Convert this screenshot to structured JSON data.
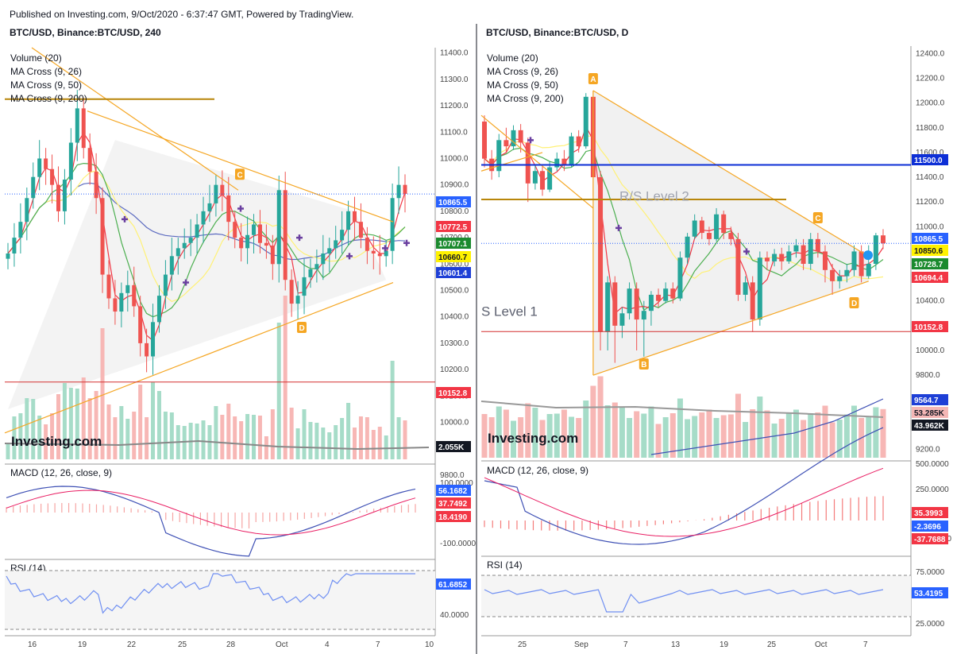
{
  "header": {
    "published": "Published on Investing.com, 9/Oct/2020 - 6:37:47 GMT, Powered by TradingView."
  },
  "colors": {
    "up": "#26a69a",
    "down": "#ef5350",
    "trend": "#f5a623",
    "ma9": "#f23645",
    "ma26": "#4caf50",
    "ma50": "#fff176",
    "ma200": "#5c6bc0",
    "macd": "#3f51b5",
    "signal": "#e91e63",
    "support": "#d32f2f",
    "resistance": "#0d2fd6",
    "rs2": "#b8860b"
  },
  "chart_data": [
    {
      "type": "candlestick",
      "title": "BTC/USD, Binance:BTC/USD, 240",
      "indicators": [
        "Volume (20)",
        "MA Cross (9, 26)",
        "MA Cross (9, 50)",
        "MA Cross (9, 200)"
      ],
      "y_ticks": [
        11400,
        11300,
        11200,
        11100,
        11000,
        10900,
        10800,
        10700,
        10600,
        10500,
        10400,
        10300,
        10200,
        10100,
        10000,
        9900,
        9800
      ],
      "y_tick_labels": [
        "11400.0",
        "11300.0",
        "11200.0",
        "11100.0",
        "11000.0",
        "10900.0",
        "10800.0",
        "10700.0",
        "10600.0",
        "10500.0",
        "10400.0",
        "10300.0",
        "10200.0",
        "10100.0",
        "10000.0",
        "9900.0",
        "9800.0"
      ],
      "ylim": [
        9860,
        11420
      ],
      "x_tick_labels": [
        "16",
        "19",
        "22",
        "25",
        "28",
        "Oct",
        "4",
        "7",
        "10"
      ],
      "close_path": [
        10640,
        10700,
        10760,
        10850,
        10930,
        11000,
        10960,
        10900,
        10800,
        10920,
        11060,
        11190,
        11040,
        10950,
        10850,
        10560,
        10470,
        10420,
        10490,
        10520,
        10440,
        10300,
        10250,
        10380,
        10480,
        10560,
        10630,
        10660,
        10680,
        10700,
        10750,
        10800,
        10830,
        10900,
        10860,
        10760,
        10700,
        10660,
        10710,
        10750,
        10680,
        10670,
        10600,
        10880,
        10540,
        10450,
        10480,
        10550,
        10580,
        10600,
        10640,
        10660,
        10690,
        10730,
        10800,
        10760,
        10700,
        10650,
        10640,
        10630,
        10650,
        10850,
        10900,
        10866
      ],
      "price_labels": [
        {
          "label": "10865.5",
          "value": 10865.5,
          "color": "#2962ff"
        },
        {
          "label": "10772.5",
          "value": 10772.5,
          "color": "#f23645"
        },
        {
          "label": "10707.1",
          "value": 10707.1,
          "color": "#1b8a2e"
        },
        {
          "label": "10660.7",
          "value": 10660.7,
          "color": "#fff200"
        },
        {
          "label": "10601.4",
          "value": 10601.4,
          "color": "#1e3fd6"
        },
        {
          "label": "10152.8",
          "value": 10152.8,
          "color": "#f23645"
        },
        {
          "label": "2.055K",
          "value": 9850,
          "color": "#131722"
        }
      ],
      "horizontal_levels": [
        {
          "name": "support",
          "value": 10152.8
        }
      ],
      "pattern_points": [
        {
          "label": "C",
          "value": 10880
        },
        {
          "label": "D",
          "value": 10420
        }
      ],
      "macd": {
        "label": "MACD (12, 26, close, 9)",
        "y_tick_labels": [
          "100.0000",
          "-100.0000"
        ],
        "value_labels": [
          {
            "label": "56.1682",
            "color": "#2962ff"
          },
          {
            "label": "37.7492",
            "color": "#f23645"
          },
          {
            "label": "18.4190",
            "color": "#f23645"
          }
        ]
      },
      "rsi": {
        "label": "RSI (14)",
        "y_tick_labels": [
          "40.0000"
        ],
        "value_labels": [
          {
            "label": "61.6852",
            "color": "#2962ff"
          }
        ]
      }
    },
    {
      "type": "candlestick",
      "title": "BTC/USD, Binance:BTC/USD, D",
      "indicators": [
        "Volume (20)",
        "MA Cross (9, 26)",
        "MA Cross (9, 50)",
        "MA Cross (9, 200)"
      ],
      "y_ticks": [
        12400,
        12200,
        12000,
        11800,
        11600,
        11400,
        11200,
        11000,
        10800,
        10600,
        10400,
        10200,
        10000,
        9800,
        9600,
        9400,
        9200
      ],
      "y_tick_labels": [
        "12400.0",
        "12200.0",
        "12000.0",
        "11800.0",
        "11600.0",
        "11400.0",
        "11200.0",
        "11000.0",
        "10800.0",
        "10600.0",
        "10400.0",
        "10200.0",
        "10000.0",
        "9800.0",
        "9600.0",
        "9400.0",
        "9200.0"
      ],
      "ylim": [
        9120,
        12460
      ],
      "x_tick_labels": [
        "25",
        "Sep",
        "7",
        "13",
        "19",
        "25",
        "Oct",
        "7"
      ],
      "candles": [
        {
          "o": 11850,
          "c": 11550,
          "h": 11900,
          "l": 11480
        },
        {
          "o": 11550,
          "c": 11450,
          "h": 11620,
          "l": 11380
        },
        {
          "o": 11450,
          "c": 11700,
          "h": 11750,
          "l": 11400
        },
        {
          "o": 11700,
          "c": 11650,
          "h": 11800,
          "l": 11600
        },
        {
          "o": 11650,
          "c": 11780,
          "h": 11820,
          "l": 11620
        },
        {
          "o": 11780,
          "c": 11680,
          "h": 11830,
          "l": 11600
        },
        {
          "o": 11680,
          "c": 11350,
          "h": 11720,
          "l": 11200
        },
        {
          "o": 11350,
          "c": 11450,
          "h": 11500,
          "l": 11300
        },
        {
          "o": 11450,
          "c": 11300,
          "h": 11500,
          "l": 11250
        },
        {
          "o": 11300,
          "c": 11480,
          "h": 11530,
          "l": 11280
        },
        {
          "o": 11480,
          "c": 11550,
          "h": 11600,
          "l": 11450
        },
        {
          "o": 11550,
          "c": 11500,
          "h": 11620,
          "l": 11450
        },
        {
          "o": 11500,
          "c": 11730,
          "h": 11760,
          "l": 11480
        },
        {
          "o": 11730,
          "c": 11650,
          "h": 11780,
          "l": 11600
        },
        {
          "o": 11650,
          "c": 12050,
          "h": 12080,
          "l": 11630
        },
        {
          "o": 12050,
          "c": 11400,
          "h": 12100,
          "l": 11250
        },
        {
          "o": 11400,
          "c": 10150,
          "h": 11450,
          "l": 10000
        },
        {
          "o": 10150,
          "c": 10550,
          "h": 10600,
          "l": 10000
        },
        {
          "o": 10550,
          "c": 10200,
          "h": 10600,
          "l": 9900
        },
        {
          "o": 10200,
          "c": 10300,
          "h": 10350,
          "l": 10100
        },
        {
          "o": 10300,
          "c": 10500,
          "h": 10550,
          "l": 10250
        },
        {
          "o": 10500,
          "c": 10250,
          "h": 10550,
          "l": 10000
        },
        {
          "o": 10250,
          "c": 10320,
          "h": 10400,
          "l": 9950
        },
        {
          "o": 10320,
          "c": 10450,
          "h": 10480,
          "l": 10200
        },
        {
          "o": 10450,
          "c": 10400,
          "h": 10500,
          "l": 10350
        },
        {
          "o": 10400,
          "c": 10500,
          "h": 10550,
          "l": 10380
        },
        {
          "o": 10500,
          "c": 10420,
          "h": 10550,
          "l": 10380
        },
        {
          "o": 10420,
          "c": 10750,
          "h": 10800,
          "l": 10400
        },
        {
          "o": 10750,
          "c": 10920,
          "h": 10950,
          "l": 10700
        },
        {
          "o": 10920,
          "c": 11050,
          "h": 11100,
          "l": 10900
        },
        {
          "o": 11050,
          "c": 10950,
          "h": 11080,
          "l": 10900
        },
        {
          "o": 10950,
          "c": 10900,
          "h": 11000,
          "l": 10850
        },
        {
          "o": 10900,
          "c": 11100,
          "h": 11150,
          "l": 10880
        },
        {
          "o": 11100,
          "c": 10950,
          "h": 11130,
          "l": 10900
        },
        {
          "o": 10950,
          "c": 10900,
          "h": 11000,
          "l": 10850
        },
        {
          "o": 10900,
          "c": 10450,
          "h": 10950,
          "l": 10400
        },
        {
          "o": 10450,
          "c": 10550,
          "h": 10600,
          "l": 10400
        },
        {
          "o": 10550,
          "c": 10250,
          "h": 10600,
          "l": 10150
        },
        {
          "o": 10250,
          "c": 10750,
          "h": 10800,
          "l": 10200
        },
        {
          "o": 10750,
          "c": 10720,
          "h": 10800,
          "l": 10650
        },
        {
          "o": 10720,
          "c": 10780,
          "h": 10820,
          "l": 10680
        },
        {
          "o": 10780,
          "c": 10720,
          "h": 10830,
          "l": 10650
        },
        {
          "o": 10720,
          "c": 10800,
          "h": 10850,
          "l": 10700
        },
        {
          "o": 10800,
          "c": 10850,
          "h": 10900,
          "l": 10750
        },
        {
          "o": 10850,
          "c": 10700,
          "h": 10900,
          "l": 10650
        },
        {
          "o": 10700,
          "c": 10900,
          "h": 10950,
          "l": 10650
        },
        {
          "o": 10900,
          "c": 10800,
          "h": 10950,
          "l": 10750
        },
        {
          "o": 10800,
          "c": 10650,
          "h": 10850,
          "l": 10550
        },
        {
          "o": 10650,
          "c": 10560,
          "h": 10700,
          "l": 10450
        },
        {
          "o": 10560,
          "c": 10600,
          "h": 10650,
          "l": 10500
        },
        {
          "o": 10600,
          "c": 10650,
          "h": 10700,
          "l": 10550
        },
        {
          "o": 10650,
          "c": 10800,
          "h": 10850,
          "l": 10600
        },
        {
          "o": 10800,
          "c": 10600,
          "h": 10850,
          "l": 10550
        },
        {
          "o": 10600,
          "c": 10700,
          "h": 10850,
          "l": 10580
        },
        {
          "o": 10700,
          "c": 10930,
          "h": 10950,
          "l": 10650
        },
        {
          "o": 10930,
          "c": 10866,
          "h": 10980,
          "l": 10820
        }
      ],
      "price_labels": [
        {
          "label": "11500.0",
          "value": 11500,
          "color": "#0d2fd6"
        },
        {
          "label": "10865.5",
          "value": 10865.5,
          "color": "#2962ff"
        },
        {
          "label": "10850.6",
          "value": 10850.6,
          "color": "#fff200"
        },
        {
          "label": "10728.7",
          "value": 10728.7,
          "color": "#1b8a2e"
        },
        {
          "label": "10694.4",
          "value": 10694.4,
          "color": "#f23645"
        },
        {
          "label": "10152.8",
          "value": 10152.8,
          "color": "#f23645"
        },
        {
          "label": "9564.7",
          "value": 9564.7,
          "color": "#1e3fd6"
        },
        {
          "label": "53.285K",
          "value": 9460,
          "color": "#f4b6b5"
        },
        {
          "label": "43.962K",
          "value": 9370,
          "color": "#131722"
        }
      ],
      "horizontal_levels": [
        {
          "name": "resistance",
          "value": 11500
        },
        {
          "name": "support",
          "value": 10152.8
        },
        {
          "name": "rs2",
          "value": 11220
        }
      ],
      "annotations": [
        {
          "text": "R/S Level 2",
          "value": 11250
        },
        {
          "text": "S Level 1",
          "value": 10280
        }
      ],
      "pattern_points": [
        {
          "label": "A",
          "value": 12100
        },
        {
          "label": "B",
          "value": 9800
        },
        {
          "label": "C",
          "value": 10950
        },
        {
          "label": "D",
          "value": 10480
        }
      ],
      "macd": {
        "label": "MACD (12, 26, close, 9)",
        "y_tick_labels": [
          "500.0000",
          "250.0000",
          "-250.0000"
        ],
        "value_labels": [
          {
            "label": "35.3993",
            "color": "#f23645"
          },
          {
            "label": "-2.3696",
            "color": "#2962ff"
          },
          {
            "label": "-37.7688",
            "color": "#f23645"
          }
        ]
      },
      "rsi": {
        "label": "RSI (14)",
        "y_tick_labels": [
          "75.0000",
          "25.0000"
        ],
        "value_labels": [
          {
            "label": "53.4195",
            "color": "#2962ff"
          }
        ]
      }
    }
  ],
  "watermark": "Investing.com"
}
